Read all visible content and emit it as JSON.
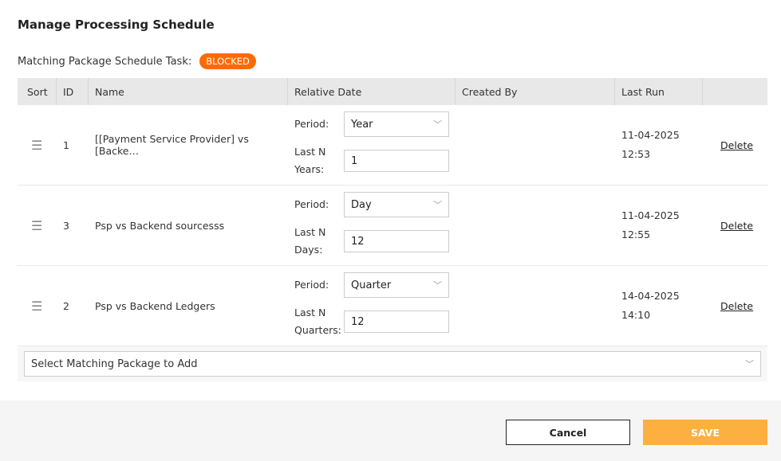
{
  "title": "Manage Processing Schedule",
  "task": {
    "label": "Matching Package Schedule Task:",
    "status": "BLOCKED",
    "status_color": "#ff6a00"
  },
  "columns": [
    "Sort",
    "ID",
    "Name",
    "Relative Date",
    "Created By",
    "Last Run",
    ""
  ],
  "rows": [
    {
      "id": "1",
      "name": "[[Payment Service Provider] vs [Backe…",
      "period_label": "Period:",
      "period": "Year",
      "lastn_label": "Last N Years:",
      "lastn": "1",
      "created_by": "",
      "last_run_date": "11-04-2025",
      "last_run_time": "12:53",
      "delete": "Delete"
    },
    {
      "id": "3",
      "name": "Psp vs Backend sourcesss",
      "period_label": "Period:",
      "period": "Day",
      "lastn_label": "Last N Days:",
      "lastn": "12",
      "created_by": "",
      "last_run_date": "11-04-2025",
      "last_run_time": "12:55",
      "delete": "Delete"
    },
    {
      "id": "2",
      "name": "Psp vs Backend Ledgers",
      "period_label": "Period:",
      "period": "Quarter",
      "lastn_label": "Last N Quarters:",
      "lastn": "12",
      "created_by": "",
      "last_run_date": "14-04-2025",
      "last_run_time": "14:10",
      "delete": "Delete"
    }
  ],
  "add_placeholder": "Select Matching Package to Add",
  "footer": {
    "cancel": "Cancel",
    "save": "SAVE",
    "save_color": "#fcb040"
  }
}
